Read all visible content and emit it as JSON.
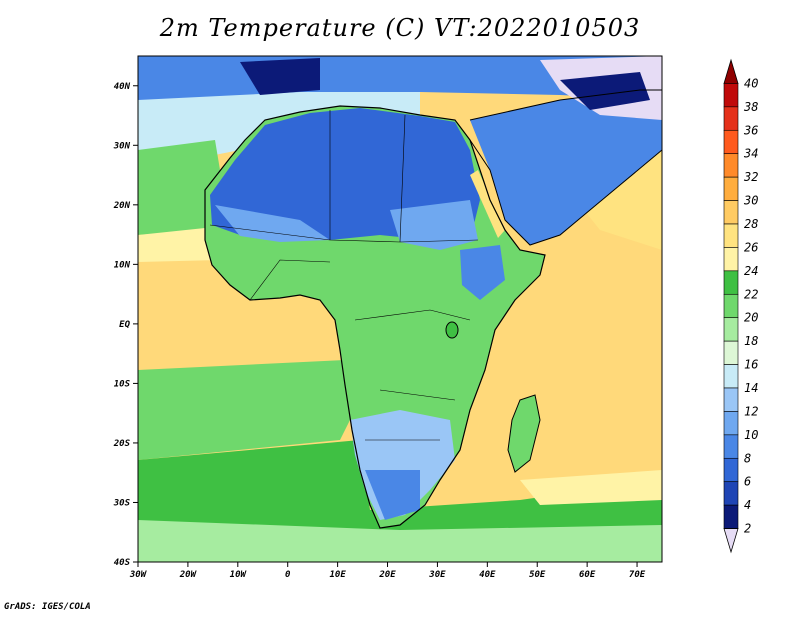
{
  "title": "2m Temperature (C) VT:2022010503",
  "credit": "GrADS: IGES/COLA",
  "map": {
    "lat_ticks": [
      "40N",
      "30N",
      "20N",
      "10N",
      "EQ",
      "10S",
      "20S",
      "30S",
      "40S"
    ],
    "lon_ticks": [
      "30W",
      "20W",
      "10W",
      "0",
      "10E",
      "20E",
      "30E",
      "40E",
      "50E",
      "60E",
      "70E"
    ],
    "lat_range": [
      -40,
      45
    ],
    "lon_range": [
      -30,
      75
    ]
  },
  "colorbar": {
    "labels": [
      "2",
      "4",
      "6",
      "8",
      "10",
      "12",
      "14",
      "16",
      "18",
      "20",
      "22",
      "24",
      "26",
      "28",
      "30",
      "32",
      "34",
      "36",
      "38",
      "40"
    ],
    "colors": [
      "#e6dcf5",
      "#0c1a78",
      "#1f45b5",
      "#3167d6",
      "#4a87e6",
      "#6fa8f0",
      "#9ac6f6",
      "#c8ebf7",
      "#ddf7d6",
      "#a6eca0",
      "#6fd86c",
      "#3fc043",
      "#fff3a6",
      "#ffe380",
      "#ffcb63",
      "#ffad3e",
      "#ff8a2a",
      "#ff5a1e",
      "#e5311a",
      "#c00a0a",
      "#8f0000"
    ]
  }
}
